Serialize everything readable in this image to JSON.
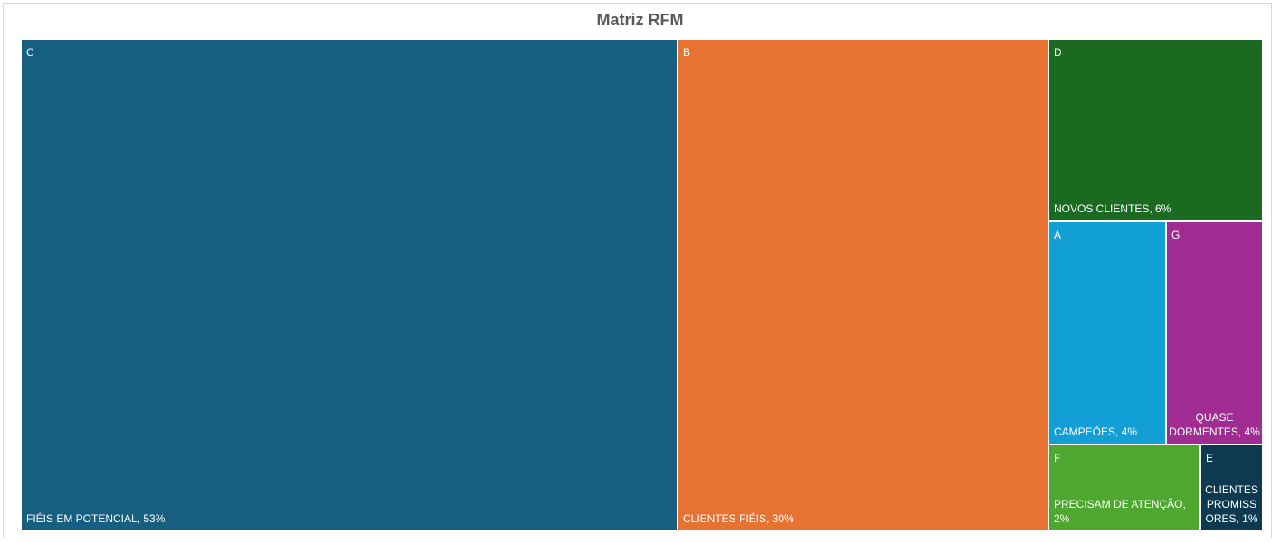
{
  "chart_data": {
    "type": "treemap",
    "title": "Matriz RFM",
    "items": [
      {
        "id": "C",
        "name": "FIÉIS EM POTENCIAL",
        "value": 53,
        "label": "FIÉIS EM POTENCIAL, 53%",
        "color": "#175f80"
      },
      {
        "id": "B",
        "name": "CLIENTES FIÉIS",
        "value": 30,
        "label": "CLIENTES FIÉIS, 30%",
        "color": "#e87231"
      },
      {
        "id": "D",
        "name": "NOVOS CLIENTES",
        "value": 6,
        "label": "NOVOS CLIENTES, 6%",
        "color": "#1a6b21"
      },
      {
        "id": "A",
        "name": "CAMPEÕES",
        "value": 4,
        "label": "CAMPEÕES, 4%",
        "color": "#119fd6"
      },
      {
        "id": "G",
        "name": "QUASE DORMENTES",
        "value": 4,
        "label": "QUASE DORMENTES, 4%",
        "color": "#a02b92"
      },
      {
        "id": "F",
        "name": "PRECISAM DE ATENÇÃO",
        "value": 2,
        "label": "PRECISAM DE ATENÇÃO, 2%",
        "color": "#4ea72e"
      },
      {
        "id": "E",
        "name": "CLIENTES PROMISSORES",
        "value": 1,
        "label": "CLIENTES PROMISSORES, 1%",
        "color": "#0d3a50"
      }
    ]
  }
}
